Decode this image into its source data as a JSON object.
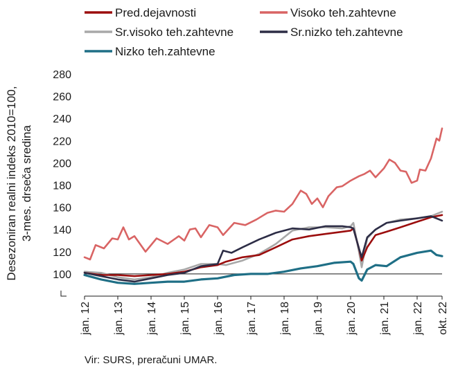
{
  "chart_data": {
    "type": "line",
    "source": "Vir: SURS, preračuni UMAR.",
    "ylabel_lines": [
      "Desezoniran realni indeks 2010=100,",
      "3-mes. drseča sredina"
    ],
    "ylim": [
      80,
      280
    ],
    "yticks": [
      100,
      120,
      140,
      160,
      180,
      200,
      220,
      240,
      260,
      280
    ],
    "xlim": [
      "2012-01",
      "2022-10"
    ],
    "x_tick_labels": [
      {
        "label": "jan. 12",
        "date": "2012-01"
      },
      {
        "label": "jan. 13",
        "date": "2013-01"
      },
      {
        "label": "jan. 14",
        "date": "2014-01"
      },
      {
        "label": "jan. 15",
        "date": "2015-01"
      },
      {
        "label": "jan. 16",
        "date": "2016-01"
      },
      {
        "label": "jan. 17",
        "date": "2017-01"
      },
      {
        "label": "jan. 18",
        "date": "2018-01"
      },
      {
        "label": "jan. 19",
        "date": "2019-01"
      },
      {
        "label": "jan. 20",
        "date": "2020-01"
      },
      {
        "label": "jan. 21",
        "date": "2021-01"
      },
      {
        "label": "jan. 22",
        "date": "2022-01"
      },
      {
        "label": "okt. 22",
        "date": "2022-10"
      }
    ],
    "reference_line": 100,
    "legend_position": "top",
    "series": [
      {
        "name": "Pred.dejavnosti",
        "color": "#9b0d0d",
        "values": [
          [
            "2012-01",
            101
          ],
          [
            "2012-07",
            99
          ],
          [
            "2013-01",
            99
          ],
          [
            "2013-07",
            98
          ],
          [
            "2014-01",
            99
          ],
          [
            "2014-07",
            100
          ],
          [
            "2015-01",
            102
          ],
          [
            "2015-07",
            106
          ],
          [
            "2016-01",
            108
          ],
          [
            "2016-04",
            111
          ],
          [
            "2016-10",
            115
          ],
          [
            "2017-04",
            117
          ],
          [
            "2017-10",
            124
          ],
          [
            "2018-04",
            131
          ],
          [
            "2018-10",
            134
          ],
          [
            "2019-04",
            136
          ],
          [
            "2019-10",
            138
          ],
          [
            "2020-01",
            139
          ],
          [
            "2020-02",
            141
          ],
          [
            "2020-04",
            123
          ],
          [
            "2020-05",
            112
          ],
          [
            "2020-07",
            124
          ],
          [
            "2020-10",
            135
          ],
          [
            "2021-02",
            138
          ],
          [
            "2021-07",
            142
          ],
          [
            "2022-01",
            147
          ],
          [
            "2022-06",
            151
          ],
          [
            "2022-10",
            153
          ]
        ]
      },
      {
        "name": "Visoko teh.zahtevne",
        "color": "#d96464",
        "values": [
          [
            "2012-01",
            115
          ],
          [
            "2012-03",
            113
          ],
          [
            "2012-05",
            126
          ],
          [
            "2012-08",
            123
          ],
          [
            "2012-11",
            132
          ],
          [
            "2013-01",
            131
          ],
          [
            "2013-03",
            142
          ],
          [
            "2013-05",
            131
          ],
          [
            "2013-07",
            134
          ],
          [
            "2013-11",
            120
          ],
          [
            "2014-03",
            132
          ],
          [
            "2014-07",
            127
          ],
          [
            "2014-11",
            134
          ],
          [
            "2015-01",
            130
          ],
          [
            "2015-03",
            140
          ],
          [
            "2015-05",
            141
          ],
          [
            "2015-07",
            133
          ],
          [
            "2015-10",
            144
          ],
          [
            "2016-01",
            142
          ],
          [
            "2016-03",
            135
          ],
          [
            "2016-07",
            146
          ],
          [
            "2016-11",
            144
          ],
          [
            "2017-03",
            149
          ],
          [
            "2017-07",
            155
          ],
          [
            "2017-10",
            157
          ],
          [
            "2018-01",
            156
          ],
          [
            "2018-04",
            163
          ],
          [
            "2018-07",
            175
          ],
          [
            "2018-09",
            172
          ],
          [
            "2018-11",
            163
          ],
          [
            "2019-01",
            168
          ],
          [
            "2019-03",
            160
          ],
          [
            "2019-05",
            170
          ],
          [
            "2019-08",
            178
          ],
          [
            "2019-10",
            179
          ],
          [
            "2020-01",
            184
          ],
          [
            "2020-04",
            188
          ],
          [
            "2020-06",
            190
          ],
          [
            "2020-08",
            193
          ],
          [
            "2020-10",
            187
          ],
          [
            "2021-01",
            195
          ],
          [
            "2021-03",
            203
          ],
          [
            "2021-05",
            200
          ],
          [
            "2021-07",
            193
          ],
          [
            "2021-09",
            192
          ],
          [
            "2021-11",
            182
          ],
          [
            "2022-01",
            184
          ],
          [
            "2022-02",
            194
          ],
          [
            "2022-04",
            193
          ],
          [
            "2022-06",
            204
          ],
          [
            "2022-07",
            213
          ],
          [
            "2022-08",
            222
          ],
          [
            "2022-09",
            220
          ],
          [
            "2022-10",
            231
          ]
        ]
      },
      {
        "name": "Sr.visoko teh.zahtevne",
        "color": "#a8a8a8",
        "values": [
          [
            "2012-01",
            102
          ],
          [
            "2012-07",
            101
          ],
          [
            "2013-01",
            97
          ],
          [
            "2013-07",
            95
          ],
          [
            "2014-01",
            97
          ],
          [
            "2014-07",
            101
          ],
          [
            "2015-01",
            104
          ],
          [
            "2015-07",
            109
          ],
          [
            "2016-01",
            109
          ],
          [
            "2016-04",
            108
          ],
          [
            "2016-10",
            112
          ],
          [
            "2017-04",
            118
          ],
          [
            "2017-10",
            127
          ],
          [
            "2018-04",
            139
          ],
          [
            "2018-10",
            142
          ],
          [
            "2019-04",
            142
          ],
          [
            "2019-10",
            141
          ],
          [
            "2020-01",
            143
          ],
          [
            "2020-02",
            146
          ],
          [
            "2020-04",
            120
          ],
          [
            "2020-05",
            106
          ],
          [
            "2020-07",
            132
          ],
          [
            "2020-10",
            140
          ],
          [
            "2021-02",
            146
          ],
          [
            "2021-07",
            149
          ],
          [
            "2022-01",
            150
          ],
          [
            "2022-06",
            152
          ],
          [
            "2022-10",
            156
          ]
        ]
      },
      {
        "name": "Sr.nizko teh.zahtevne",
        "color": "#2d2d46",
        "values": [
          [
            "2012-01",
            101
          ],
          [
            "2012-07",
            98
          ],
          [
            "2013-01",
            95
          ],
          [
            "2013-07",
            93
          ],
          [
            "2014-01",
            96
          ],
          [
            "2014-07",
            99
          ],
          [
            "2015-01",
            101
          ],
          [
            "2015-07",
            107
          ],
          [
            "2016-01",
            109
          ],
          [
            "2016-03",
            121
          ],
          [
            "2016-06",
            119
          ],
          [
            "2016-10",
            124
          ],
          [
            "2017-04",
            131
          ],
          [
            "2017-10",
            137
          ],
          [
            "2018-04",
            141
          ],
          [
            "2018-10",
            140
          ],
          [
            "2019-04",
            143
          ],
          [
            "2019-10",
            143
          ],
          [
            "2020-01",
            142
          ],
          [
            "2020-02",
            141
          ],
          [
            "2020-04",
            123
          ],
          [
            "2020-05",
            115
          ],
          [
            "2020-07",
            133
          ],
          [
            "2020-10",
            140
          ],
          [
            "2021-02",
            146
          ],
          [
            "2021-07",
            148
          ],
          [
            "2022-01",
            150
          ],
          [
            "2022-06",
            152
          ],
          [
            "2022-10",
            148
          ]
        ]
      },
      {
        "name": "Nizko teh.zahtevne",
        "color": "#1f6f86",
        "values": [
          [
            "2012-01",
            99
          ],
          [
            "2012-07",
            95
          ],
          [
            "2013-01",
            92
          ],
          [
            "2013-07",
            91
          ],
          [
            "2014-01",
            92
          ],
          [
            "2014-07",
            93
          ],
          [
            "2015-01",
            93
          ],
          [
            "2015-07",
            95
          ],
          [
            "2016-01",
            96
          ],
          [
            "2016-07",
            99
          ],
          [
            "2017-01",
            100
          ],
          [
            "2017-07",
            100
          ],
          [
            "2018-01",
            102
          ],
          [
            "2018-07",
            105
          ],
          [
            "2019-01",
            107
          ],
          [
            "2019-07",
            110
          ],
          [
            "2020-01",
            111
          ],
          [
            "2020-02",
            109
          ],
          [
            "2020-04",
            96
          ],
          [
            "2020-05",
            94
          ],
          [
            "2020-07",
            104
          ],
          [
            "2020-10",
            108
          ],
          [
            "2021-02",
            107
          ],
          [
            "2021-07",
            115
          ],
          [
            "2022-01",
            119
          ],
          [
            "2022-06",
            121
          ],
          [
            "2022-08",
            117
          ],
          [
            "2022-10",
            116
          ]
        ]
      }
    ]
  }
}
